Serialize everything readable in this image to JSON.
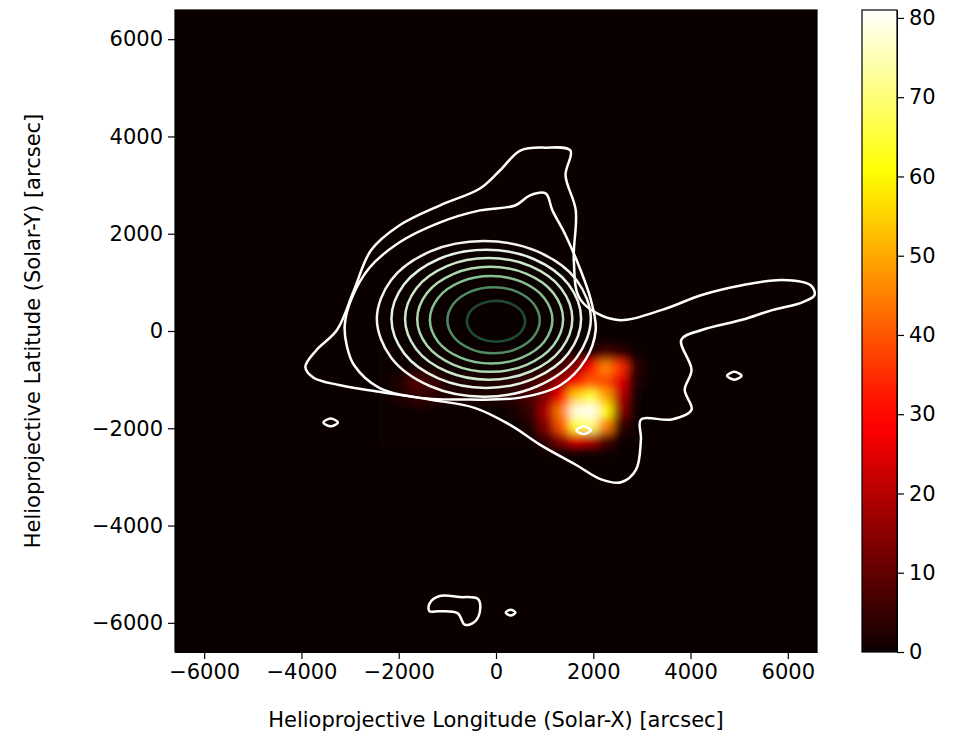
{
  "chart_data": {
    "type": "heatmap",
    "xlabel": "Helioprojective Longitude (Solar-X) [arcsec]",
    "ylabel": "Helioprojective Latitude (Solar-Y) [arcsec]",
    "xlim": [
      -6600,
      6600
    ],
    "ylim": [
      -6600,
      6600
    ],
    "xticks": [
      {
        "value": -6000,
        "label": "−6000"
      },
      {
        "value": -4000,
        "label": "−4000"
      },
      {
        "value": -2000,
        "label": "−2000"
      },
      0,
      2000,
      4000,
      6000
    ],
    "yticks": [
      {
        "value": -6000,
        "label": "−6000"
      },
      {
        "value": -4000,
        "label": "−4000"
      },
      {
        "value": -2000,
        "label": "−2000"
      },
      0,
      2000,
      4000,
      6000
    ],
    "x": [
      -2250,
      -1950,
      -1650,
      -1350,
      -1050,
      -750,
      -450,
      -150,
      150,
      450,
      750,
      1050,
      1350,
      1650,
      1950,
      2250,
      2550,
      2850
    ],
    "y": [
      -450,
      -750,
      -1050,
      -1350,
      -1650,
      -1950,
      -2250
    ],
    "values": [
      [
        0,
        0,
        0,
        0,
        0,
        0,
        0,
        0,
        0,
        0,
        0,
        0,
        0,
        0,
        0,
        8,
        5,
        0
      ],
      [
        0,
        0,
        0,
        0,
        0,
        0,
        0,
        0,
        0,
        0,
        0,
        0,
        5,
        15,
        30,
        45,
        35,
        5
      ],
      [
        0,
        3,
        8,
        6,
        3,
        2,
        2,
        2,
        3,
        4,
        6,
        10,
        18,
        30,
        40,
        38,
        25,
        3
      ],
      [
        0,
        2,
        5,
        4,
        2,
        2,
        2,
        2,
        3,
        4,
        8,
        15,
        30,
        55,
        65,
        50,
        20,
        0
      ],
      [
        0,
        0,
        0,
        0,
        0,
        0,
        0,
        0,
        0,
        2,
        6,
        20,
        45,
        78,
        80,
        60,
        15,
        0
      ],
      [
        0,
        0,
        0,
        0,
        0,
        0,
        0,
        0,
        0,
        0,
        3,
        15,
        40,
        65,
        70,
        45,
        5,
        0
      ],
      [
        0,
        0,
        0,
        0,
        0,
        0,
        0,
        0,
        0,
        0,
        0,
        5,
        15,
        25,
        20,
        8,
        0,
        0
      ]
    ],
    "colorbar_lim": [
      0,
      81
    ],
    "colorbar_ticks": [
      0,
      10,
      20,
      30,
      40,
      50,
      60,
      70,
      80
    ],
    "contours": [
      {
        "color": "#ffffff",
        "x": [
          -3920,
          -3690,
          -3270,
          -2920,
          -2570,
          -1990,
          -1160,
          -330,
          80,
          500,
          1020,
          1530,
          1430,
          1640,
          1600,
          1740,
          2470,
          3400,
          4230,
          5060,
          5890,
          6470,
          6550,
          6300,
          5680,
          5060,
          4230,
          3810,
          4020,
          3880,
          4020,
          3610,
          2980,
          2980,
          2880,
          2570,
          2160,
          1640,
          910,
          290,
          -440,
          -1370,
          -2400,
          -3230,
          -3750
        ],
        "y": [
          -740,
          -390,
          20,
          840,
          1660,
          2170,
          2580,
          2930,
          3300,
          3710,
          3770,
          3710,
          3200,
          2480,
          1450,
          640,
          230,
          430,
          740,
          940,
          1050,
          940,
          740,
          590,
          430,
          230,
          20,
          -180,
          -800,
          -1210,
          -1620,
          -1820,
          -1820,
          -2230,
          -2850,
          -3110,
          -3050,
          -2750,
          -2340,
          -1930,
          -1580,
          -1410,
          -1250,
          -1110,
          -960
        ]
      },
      {
        "color": "#ffffff",
        "x": [
          -3110,
          -2980,
          -2610,
          -1990,
          -1160,
          -330,
          390,
          700,
          1020,
          1160,
          1430,
          1740,
          1950,
          2050,
          1840,
          1330,
          500,
          -540,
          -1580,
          -2400,
          -2920,
          -3070
        ],
        "y": [
          120,
          640,
          1290,
          1820,
          2230,
          2480,
          2580,
          2790,
          2830,
          2480,
          1970,
          1250,
          640,
          20,
          -590,
          -1110,
          -1370,
          -1410,
          -1370,
          -1170,
          -700,
          -290
        ]
      },
      {
        "color": "#f5f5f0",
        "x": [
          1950,
          1655,
          850,
          -250,
          -1350,
          -2155,
          -2450,
          -2155,
          -1350,
          -250,
          850,
          1655
        ],
        "y": [
          250,
          1050,
          1636,
          1850,
          1636,
          1050,
          250,
          -550,
          -1136,
          -1350,
          -1136,
          -550
        ]
      },
      {
        "color": "#e6f2e4",
        "x": [
          1750,
          1489,
          775,
          -200,
          -1175,
          -1889,
          -2150,
          -1889,
          -1175,
          -200,
          775,
          1489
        ],
        "y": [
          250,
          960,
          1480,
          1670,
          1480,
          960,
          250,
          -460,
          -980,
          -1170,
          -980,
          -460
        ]
      },
      {
        "color": "#cfe8cc",
        "x": [
          1570,
          1340,
          710,
          -150,
          -1010,
          -1640,
          -1870,
          -1640,
          -1010,
          -150,
          710,
          1340
        ],
        "y": [
          250,
          875,
          1333,
          1500,
          1333,
          875,
          250,
          -375,
          -833,
          -1000,
          -833,
          -375
        ]
      },
      {
        "color": "#aed8b0",
        "x": [
          1380,
          1179,
          630,
          -120,
          -870,
          -1419,
          -1620,
          -1419,
          -870,
          -120,
          630,
          1179
        ],
        "y": [
          240,
          780,
          1175,
          1320,
          1175,
          780,
          240,
          -300,
          -695,
          -840,
          -695,
          -300
        ]
      },
      {
        "color": "#86bf92",
        "x": [
          1160,
          991,
          530,
          -100,
          -730,
          -1191,
          -1360,
          -1191,
          -730,
          -100,
          530,
          991
        ],
        "y": [
          230,
          680,
          1009,
          1130,
          1009,
          680,
          230,
          -220,
          -549,
          -670,
          -549,
          -220
        ]
      },
      {
        "color": "#4f8a62",
        "x": [
          900,
          773,
          425,
          -50,
          -525,
          -873,
          -1000,
          -873,
          -525,
          -50,
          425,
          773
        ],
        "y": [
          220,
          560,
          809,
          900,
          809,
          560,
          220,
          -120,
          -369,
          -460,
          -369,
          -120
        ]
      },
      {
        "color": "#1f4a30",
        "x": [
          600,
          520,
          300,
          0,
          -300,
          -520,
          -600,
          -520,
          -300,
          0,
          300,
          520
        ],
        "y": [
          200,
          410,
          564,
          620,
          564,
          410,
          200,
          -10,
          -164,
          -220,
          -164,
          -10
        ]
      },
      {
        "color": "#ffffff",
        "x": [
          -1370,
          -1160,
          -750,
          -370,
          -330,
          -440,
          -640,
          -790,
          -1160,
          -1370
        ],
        "y": [
          -5610,
          -5450,
          -5470,
          -5510,
          -5760,
          -5980,
          -6040,
          -5800,
          -5760,
          -5760
        ]
      },
      {
        "color": "#ffffff",
        "x": [
          -3250,
          -3400,
          -3550,
          -3400
        ],
        "y": [
          -1880,
          -1800,
          -1880,
          -1960
        ]
      },
      {
        "color": "#ffffff",
        "x": [
          5050,
          4900,
          4750,
          4900
        ],
        "y": [
          -920,
          -840,
          -920,
          -1000
        ]
      },
      {
        "color": "#ffffff",
        "x": [
          1950,
          1800,
          1650,
          1800
        ],
        "y": [
          -2040,
          -1960,
          -2040,
          -2120
        ]
      },
      {
        "color": "#ffffff",
        "x": [
          400,
          300,
          200,
          300
        ],
        "y": [
          -5790,
          -5730,
          -5790,
          -5850
        ]
      }
    ]
  }
}
